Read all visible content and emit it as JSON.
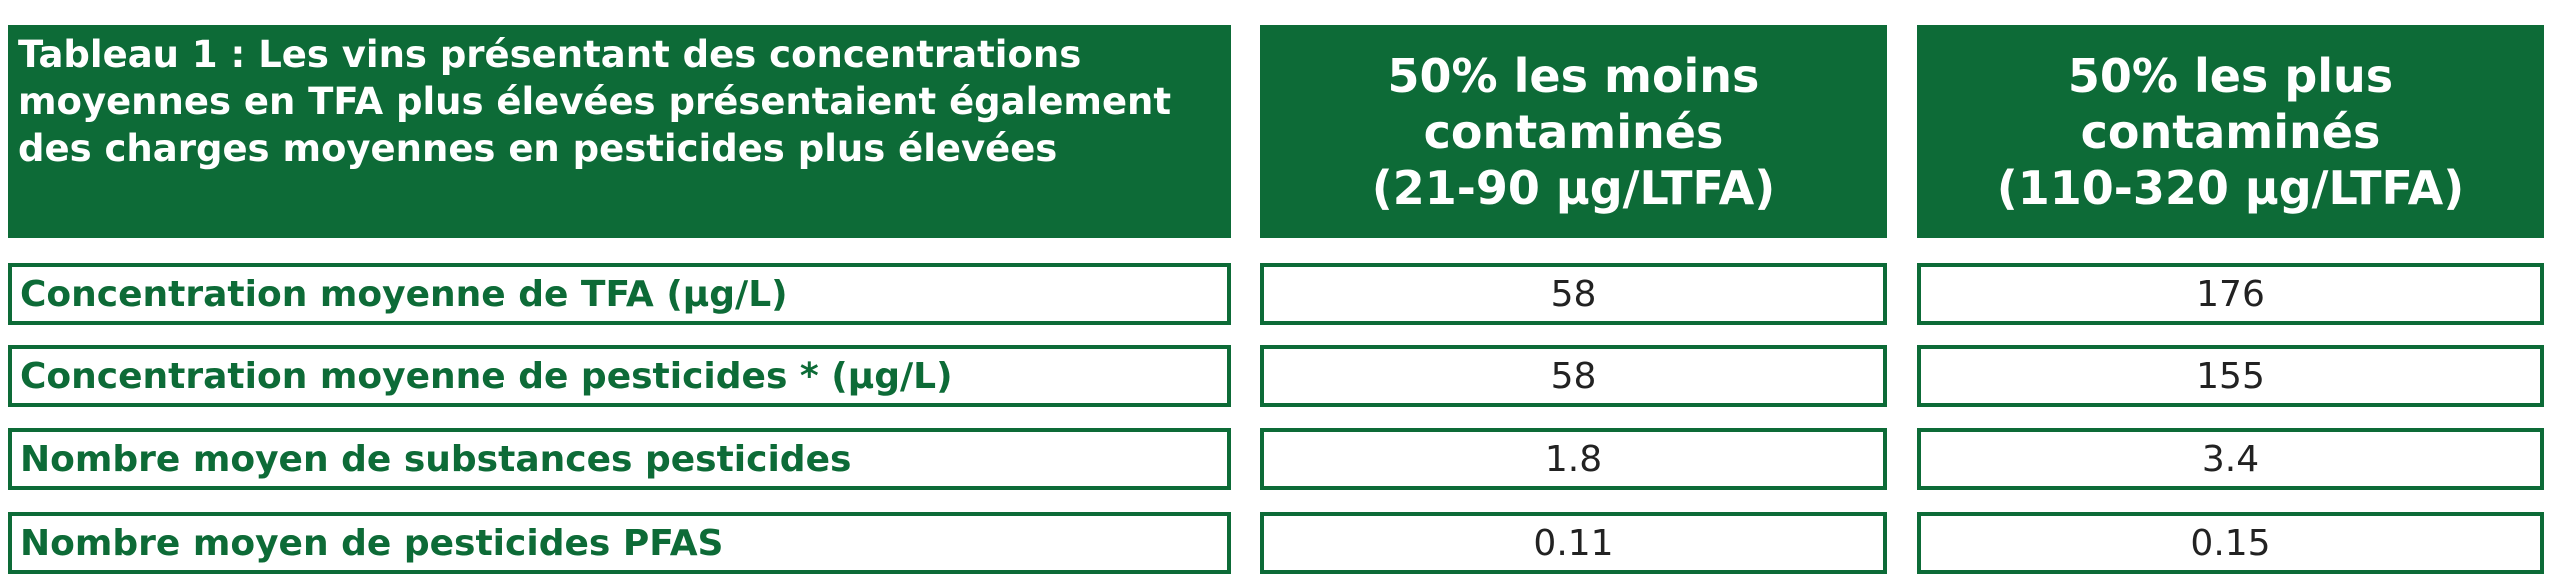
{
  "header": {
    "title": "Tableau 1 : Les vins présentant des concentrations moyennes en TFA plus élevées présentaient également des charges moyennes en pesticides plus élevées",
    "columns": [
      {
        "name": "50% les moins contaminés",
        "range": "(21-90  µg/LTFA)"
      },
      {
        "name": "50% les plus contaminés",
        "range": "(110-320  µg/LTFA)"
      }
    ]
  },
  "table": {
    "rows": [
      [
        "Concentration moyenne de TFA (µg/L)",
        58,
        176
      ],
      [
        "Concentration moyenne de pesticides * (µg/L)",
        58,
        155
      ],
      [
        "Nombre moyen de substances pesticides",
        1.8,
        3.4
      ],
      [
        "Nombre moyen de pesticides PFAS",
        0.11,
        0.15
      ]
    ]
  }
}
